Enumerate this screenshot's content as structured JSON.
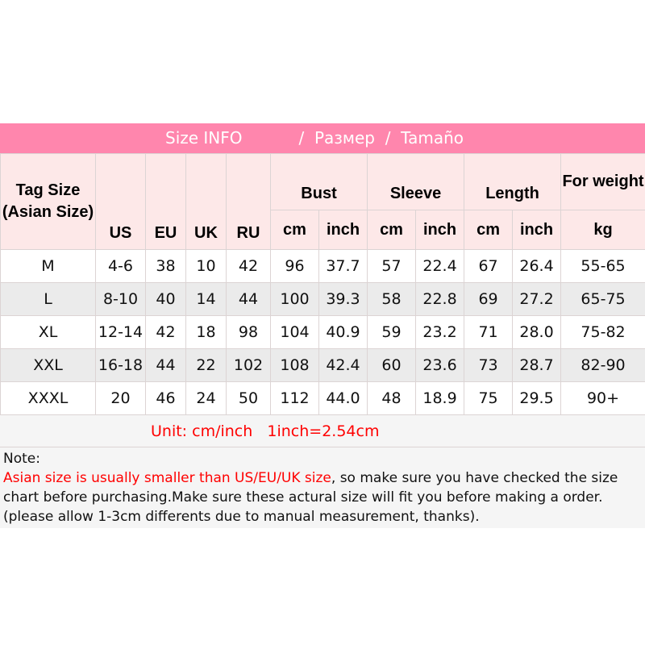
{
  "title": {
    "part1": "Size INFO",
    "sep1": "/",
    "part2": "Размер",
    "sep2": "/",
    "part3": "Tamaño"
  },
  "colors": {
    "header_bar": "#ff86ad",
    "header_cells": "#fde8e8",
    "alt_row": "#ebebeb",
    "unit_text": "#ff0000"
  },
  "headers": {
    "tag_size": "Tag Size (Asian Size)",
    "us": "US",
    "eu": "EU",
    "uk": "UK",
    "ru": "RU",
    "bust": "Bust",
    "sleeve": "Sleeve",
    "length": "Length",
    "for_weight": "For weight",
    "cm": "cm",
    "inch": "inch",
    "kg": "kg"
  },
  "rows": [
    [
      "M",
      "4-6",
      "38",
      "10",
      "42",
      "96",
      "37.7",
      "57",
      "22.4",
      "67",
      "26.4",
      "55-65"
    ],
    [
      "L",
      "8-10",
      "40",
      "14",
      "44",
      "100",
      "39.3",
      "58",
      "22.8",
      "69",
      "27.2",
      "65-75"
    ],
    [
      "XL",
      "12-14",
      "42",
      "18",
      "98",
      "104",
      "40.9",
      "59",
      "23.2",
      "71",
      "28.0",
      "75-82"
    ],
    [
      "XXL",
      "16-18",
      "44",
      "22",
      "102",
      "108",
      "42.4",
      "60",
      "23.6",
      "73",
      "28.7",
      "82-90"
    ],
    [
      "XXXL",
      "20",
      "46",
      "24",
      "50",
      "112",
      "44.0",
      "48",
      "18.9",
      "75",
      "29.5",
      "90+"
    ]
  ],
  "unit_line": "Unit: cm/inch   1inch=2.54cm",
  "note": {
    "label": "Note:",
    "red_text": "Asian size is usually smaller than US/EU/UK size",
    "rest_text": ", so make sure you have checked the size chart before purchasing.Make sure these actural size will fit you before making a order.(please allow 1-3cm differents due to manual measurement, thanks)."
  }
}
